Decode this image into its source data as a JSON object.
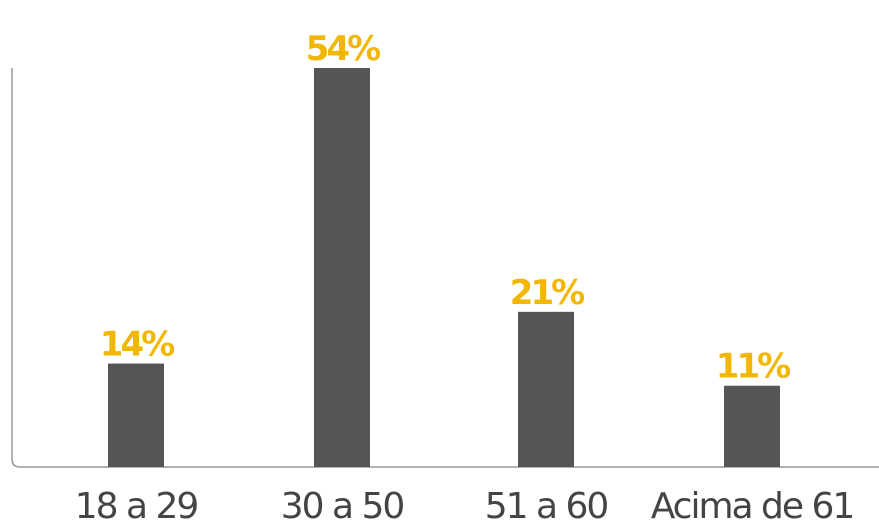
{
  "chart_data": {
    "type": "bar",
    "categories": [
      "18 a 29",
      "30 a 50",
      "51 a 60",
      "Acima de 61"
    ],
    "values": [
      14,
      54,
      21,
      11
    ],
    "value_labels": [
      "14%",
      "54%",
      "21%",
      "11%"
    ],
    "title": "",
    "xlabel": "",
    "ylabel": "",
    "ylim": [
      0,
      54
    ],
    "grid": false,
    "legend": "none"
  },
  "colors": {
    "bar": "#555555",
    "value_label": "#f2b705",
    "category_label": "#444444",
    "axis": "#999999"
  }
}
